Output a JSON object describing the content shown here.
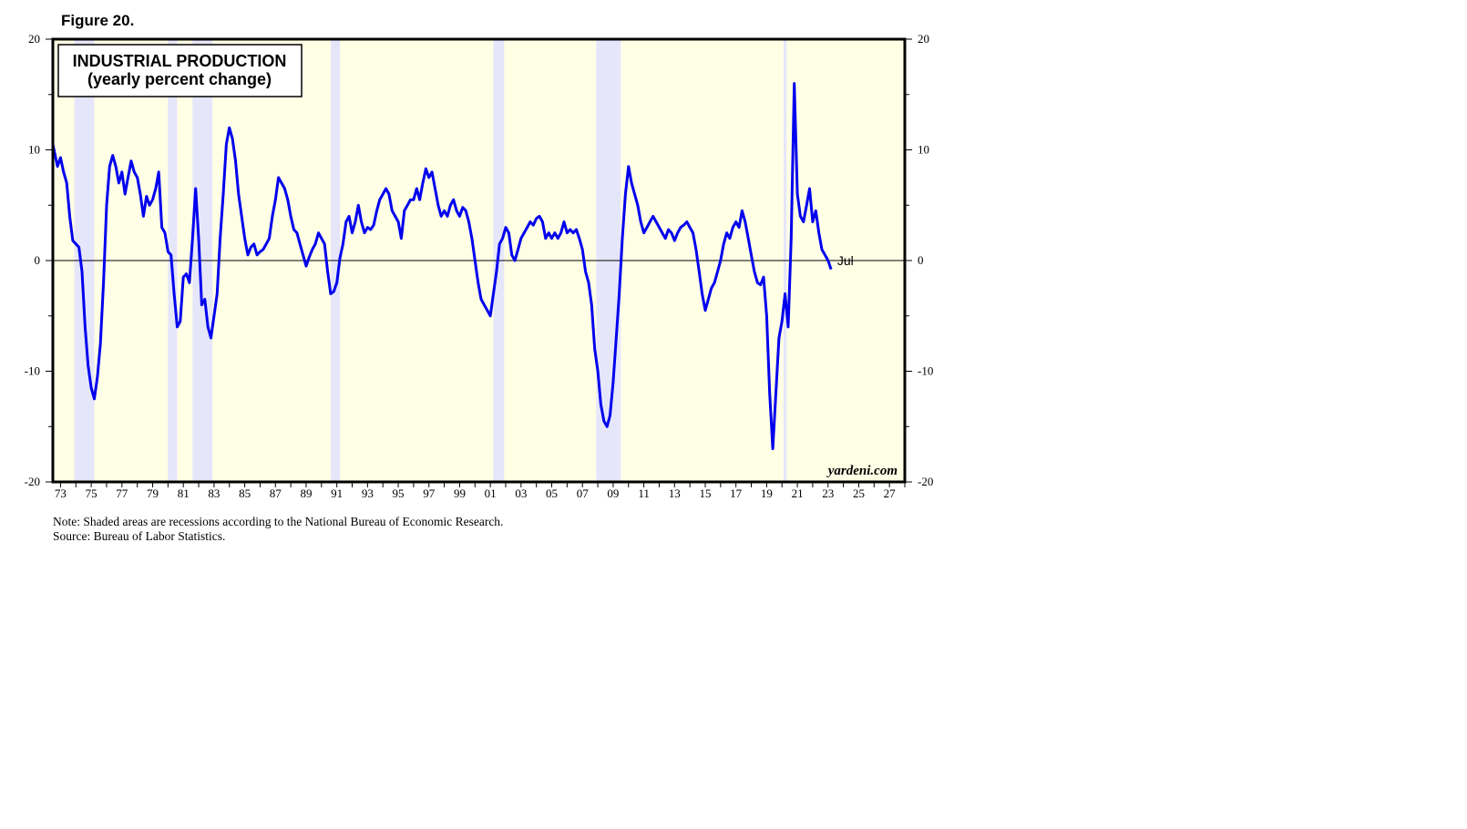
{
  "figure_label": "Figure 20.",
  "notes": {
    "note": "Note: Shaded areas are recessions according to the National Bureau of Economic Research.",
    "source": "Source: Bureau of Labor Statistics."
  },
  "watermark": "yardeni.com",
  "colors": {
    "line": "#0000ee",
    "plot_bg": "#ffffe6",
    "recession": "#e6e6fa",
    "frame": "#000000"
  },
  "chart_data": {
    "type": "line",
    "title": "INDUSTRIAL PRODUCTION",
    "subtitle": "(yearly percent change)",
    "xlabel": "",
    "ylabel": "",
    "xlim": [
      1972.5,
      2028.0
    ],
    "ylim": [
      -20,
      20
    ],
    "grid": false,
    "y_ticks": [
      -20,
      -10,
      0,
      10,
      20
    ],
    "x_tick_labels": [
      "73",
      "75",
      "77",
      "79",
      "81",
      "83",
      "85",
      "87",
      "89",
      "91",
      "93",
      "95",
      "97",
      "99",
      "01",
      "03",
      "05",
      "07",
      "09",
      "11",
      "13",
      "15",
      "17",
      "19",
      "21",
      "23",
      "25",
      "27"
    ],
    "x_tick_years": [
      1973,
      1975,
      1977,
      1979,
      1981,
      1983,
      1985,
      1987,
      1989,
      1991,
      1993,
      1995,
      1997,
      1999,
      2001,
      2003,
      2005,
      2007,
      2009,
      2011,
      2013,
      2015,
      2017,
      2019,
      2021,
      2023,
      2025,
      2027
    ],
    "recessions": [
      [
        1973.9,
        1975.2
      ],
      [
        1980.0,
        1980.6
      ],
      [
        1981.6,
        1982.9
      ],
      [
        1990.6,
        1991.2
      ],
      [
        2001.2,
        2001.9
      ],
      [
        2007.9,
        2009.5
      ],
      [
        2020.1,
        2020.3
      ]
    ],
    "annotations": [
      {
        "text": "Jul",
        "x": 2023.6,
        "y": 0
      }
    ],
    "series": [
      {
        "points": [
          [
            1972.5,
            10.5
          ],
          [
            1972.8,
            8.5
          ],
          [
            1973.0,
            9.3
          ],
          [
            1973.2,
            8.0
          ],
          [
            1973.4,
            7.0
          ],
          [
            1973.6,
            4.0
          ],
          [
            1973.8,
            1.8
          ],
          [
            1974.0,
            1.5
          ],
          [
            1974.2,
            1.2
          ],
          [
            1974.4,
            -1.0
          ],
          [
            1974.6,
            -6.0
          ],
          [
            1974.8,
            -9.5
          ],
          [
            1975.0,
            -11.5
          ],
          [
            1975.2,
            -12.5
          ],
          [
            1975.4,
            -10.5
          ],
          [
            1975.6,
            -7.5
          ],
          [
            1975.8,
            -2.0
          ],
          [
            1976.0,
            5.0
          ],
          [
            1976.2,
            8.5
          ],
          [
            1976.4,
            9.5
          ],
          [
            1976.6,
            8.5
          ],
          [
            1976.8,
            7.0
          ],
          [
            1977.0,
            8.0
          ],
          [
            1977.2,
            6.0
          ],
          [
            1977.4,
            7.5
          ],
          [
            1977.6,
            9.0
          ],
          [
            1977.8,
            8.0
          ],
          [
            1978.0,
            7.5
          ],
          [
            1978.2,
            6.0
          ],
          [
            1978.4,
            4.0
          ],
          [
            1978.6,
            5.8
          ],
          [
            1978.8,
            5.0
          ],
          [
            1979.0,
            5.5
          ],
          [
            1979.2,
            6.5
          ],
          [
            1979.4,
            8.0
          ],
          [
            1979.6,
            3.0
          ],
          [
            1979.8,
            2.5
          ],
          [
            1980.0,
            0.8
          ],
          [
            1980.2,
            0.5
          ],
          [
            1980.4,
            -3.0
          ],
          [
            1980.6,
            -6.0
          ],
          [
            1980.8,
            -5.5
          ],
          [
            1981.0,
            -1.5
          ],
          [
            1981.2,
            -1.2
          ],
          [
            1981.4,
            -2.0
          ],
          [
            1981.6,
            2.0
          ],
          [
            1981.8,
            6.5
          ],
          [
            1982.0,
            2.0
          ],
          [
            1982.2,
            -4.0
          ],
          [
            1982.4,
            -3.5
          ],
          [
            1982.6,
            -6.0
          ],
          [
            1982.8,
            -7.0
          ],
          [
            1983.0,
            -5.0
          ],
          [
            1983.2,
            -3.0
          ],
          [
            1983.4,
            2.0
          ],
          [
            1983.6,
            6.0
          ],
          [
            1983.8,
            10.5
          ],
          [
            1984.0,
            12.0
          ],
          [
            1984.2,
            11.0
          ],
          [
            1984.4,
            9.0
          ],
          [
            1984.6,
            6.0
          ],
          [
            1984.8,
            4.0
          ],
          [
            1985.0,
            2.0
          ],
          [
            1985.2,
            0.5
          ],
          [
            1985.4,
            1.2
          ],
          [
            1985.6,
            1.5
          ],
          [
            1985.8,
            0.5
          ],
          [
            1986.0,
            0.8
          ],
          [
            1986.2,
            1.0
          ],
          [
            1986.4,
            1.5
          ],
          [
            1986.6,
            2.0
          ],
          [
            1986.8,
            4.0
          ],
          [
            1987.0,
            5.5
          ],
          [
            1987.2,
            7.5
          ],
          [
            1987.4,
            7.0
          ],
          [
            1987.6,
            6.5
          ],
          [
            1987.8,
            5.5
          ],
          [
            1988.0,
            4.0
          ],
          [
            1988.2,
            2.8
          ],
          [
            1988.4,
            2.5
          ],
          [
            1988.6,
            1.5
          ],
          [
            1988.8,
            0.5
          ],
          [
            1989.0,
            -0.5
          ],
          [
            1989.2,
            0.3
          ],
          [
            1989.4,
            1.0
          ],
          [
            1989.6,
            1.5
          ],
          [
            1989.8,
            2.5
          ],
          [
            1990.0,
            2.0
          ],
          [
            1990.2,
            1.5
          ],
          [
            1990.4,
            -1.0
          ],
          [
            1990.6,
            -3.0
          ],
          [
            1990.8,
            -2.8
          ],
          [
            1991.0,
            -2.0
          ],
          [
            1991.2,
            0.2
          ],
          [
            1991.4,
            1.5
          ],
          [
            1991.6,
            3.5
          ],
          [
            1991.8,
            4.0
          ],
          [
            1992.0,
            2.5
          ],
          [
            1992.2,
            3.5
          ],
          [
            1992.4,
            5.0
          ],
          [
            1992.6,
            3.5
          ],
          [
            1992.8,
            2.5
          ],
          [
            1993.0,
            3.0
          ],
          [
            1993.2,
            2.8
          ],
          [
            1993.4,
            3.2
          ],
          [
            1993.6,
            4.5
          ],
          [
            1993.8,
            5.5
          ],
          [
            1994.0,
            6.0
          ],
          [
            1994.2,
            6.5
          ],
          [
            1994.4,
            6.0
          ],
          [
            1994.6,
            4.5
          ],
          [
            1994.8,
            4.0
          ],
          [
            1995.0,
            3.5
          ],
          [
            1995.2,
            2.0
          ],
          [
            1995.4,
            4.5
          ],
          [
            1995.6,
            5.0
          ],
          [
            1995.8,
            5.5
          ],
          [
            1996.0,
            5.5
          ],
          [
            1996.2,
            6.5
          ],
          [
            1996.4,
            5.5
          ],
          [
            1996.6,
            7.0
          ],
          [
            1996.8,
            8.3
          ],
          [
            1997.0,
            7.5
          ],
          [
            1997.2,
            8.0
          ],
          [
            1997.4,
            6.5
          ],
          [
            1997.6,
            5.0
          ],
          [
            1997.8,
            4.0
          ],
          [
            1998.0,
            4.5
          ],
          [
            1998.2,
            4.0
          ],
          [
            1998.4,
            5.0
          ],
          [
            1998.6,
            5.5
          ],
          [
            1998.8,
            4.5
          ],
          [
            1999.0,
            4.0
          ],
          [
            1999.2,
            4.8
          ],
          [
            1999.4,
            4.5
          ],
          [
            1999.6,
            3.5
          ],
          [
            1999.8,
            2.0
          ],
          [
            2000.0,
            0.0
          ],
          [
            2000.2,
            -2.0
          ],
          [
            2000.4,
            -3.5
          ],
          [
            2000.6,
            -4.0
          ],
          [
            2000.8,
            -4.5
          ],
          [
            2001.0,
            -5.0
          ],
          [
            2001.2,
            -3.0
          ],
          [
            2001.4,
            -1.0
          ],
          [
            2001.6,
            1.5
          ],
          [
            2001.8,
            2.0
          ],
          [
            2002.0,
            3.0
          ],
          [
            2002.2,
            2.5
          ],
          [
            2002.4,
            0.5
          ],
          [
            2002.6,
            0.0
          ],
          [
            2002.8,
            1.0
          ],
          [
            2003.0,
            2.0
          ],
          [
            2003.2,
            2.5
          ],
          [
            2003.4,
            3.0
          ],
          [
            2003.6,
            3.5
          ],
          [
            2003.8,
            3.2
          ],
          [
            2004.0,
            3.8
          ],
          [
            2004.2,
            4.0
          ],
          [
            2004.4,
            3.5
          ],
          [
            2004.6,
            2.0
          ],
          [
            2004.8,
            2.5
          ],
          [
            2005.0,
            2.0
          ],
          [
            2005.2,
            2.5
          ],
          [
            2005.4,
            2.0
          ],
          [
            2005.6,
            2.5
          ],
          [
            2005.8,
            3.5
          ],
          [
            2006.0,
            2.5
          ],
          [
            2006.2,
            2.8
          ],
          [
            2006.4,
            2.5
          ],
          [
            2006.6,
            2.8
          ],
          [
            2006.8,
            2.0
          ],
          [
            2007.0,
            1.0
          ],
          [
            2007.2,
            -1.0
          ],
          [
            2007.4,
            -2.0
          ],
          [
            2007.6,
            -4.0
          ],
          [
            2007.8,
            -8.0
          ],
          [
            2008.0,
            -10.0
          ],
          [
            2008.2,
            -13.0
          ],
          [
            2008.4,
            -14.5
          ],
          [
            2008.6,
            -15.0
          ],
          [
            2008.8,
            -14.0
          ],
          [
            2009.0,
            -11.0
          ],
          [
            2009.2,
            -7.0
          ],
          [
            2009.4,
            -3.0
          ],
          [
            2009.6,
            2.0
          ],
          [
            2009.8,
            6.0
          ],
          [
            2010.0,
            8.5
          ],
          [
            2010.2,
            7.0
          ],
          [
            2010.4,
            6.0
          ],
          [
            2010.6,
            5.0
          ],
          [
            2010.8,
            3.5
          ],
          [
            2011.0,
            2.5
          ],
          [
            2011.2,
            3.0
          ],
          [
            2011.4,
            3.5
          ],
          [
            2011.6,
            4.0
          ],
          [
            2011.8,
            3.5
          ],
          [
            2012.0,
            3.0
          ],
          [
            2012.2,
            2.5
          ],
          [
            2012.4,
            2.0
          ],
          [
            2012.6,
            2.8
          ],
          [
            2012.8,
            2.5
          ],
          [
            2013.0,
            1.8
          ],
          [
            2013.2,
            2.5
          ],
          [
            2013.4,
            3.0
          ],
          [
            2013.6,
            3.2
          ],
          [
            2013.8,
            3.5
          ],
          [
            2014.0,
            3.0
          ],
          [
            2014.2,
            2.5
          ],
          [
            2014.4,
            1.0
          ],
          [
            2014.6,
            -1.0
          ],
          [
            2014.8,
            -3.0
          ],
          [
            2015.0,
            -4.5
          ],
          [
            2015.2,
            -3.5
          ],
          [
            2015.4,
            -2.5
          ],
          [
            2015.6,
            -2.0
          ],
          [
            2015.8,
            -1.0
          ],
          [
            2016.0,
            0.0
          ],
          [
            2016.2,
            1.5
          ],
          [
            2016.4,
            2.5
          ],
          [
            2016.6,
            2.0
          ],
          [
            2016.8,
            3.0
          ],
          [
            2017.0,
            3.5
          ],
          [
            2017.2,
            3.0
          ],
          [
            2017.4,
            4.5
          ],
          [
            2017.6,
            3.5
          ],
          [
            2017.8,
            2.0
          ],
          [
            2018.0,
            0.5
          ],
          [
            2018.2,
            -1.0
          ],
          [
            2018.4,
            -2.0
          ],
          [
            2018.6,
            -2.2
          ],
          [
            2018.8,
            -1.5
          ],
          [
            2019.0,
            -5.0
          ],
          [
            2019.2,
            -12.0
          ],
          [
            2019.4,
            -17.0
          ],
          [
            2019.6,
            -12.0
          ],
          [
            2019.8,
            -7.0
          ],
          [
            2020.0,
            -5.5
          ],
          [
            2020.2,
            -3.0
          ],
          [
            2020.4,
            -6.0
          ],
          [
            2020.6,
            2.0
          ],
          [
            2020.8,
            16.0
          ],
          [
            2021.0,
            6.0
          ],
          [
            2021.2,
            4.0
          ],
          [
            2021.4,
            3.5
          ],
          [
            2021.6,
            5.0
          ],
          [
            2021.8,
            6.5
          ],
          [
            2022.0,
            3.5
          ],
          [
            2022.2,
            4.5
          ],
          [
            2022.4,
            2.5
          ],
          [
            2022.6,
            1.0
          ],
          [
            2022.8,
            0.5
          ],
          [
            2023.0,
            0.0
          ],
          [
            2023.2,
            -0.8
          ]
        ]
      }
    ]
  }
}
